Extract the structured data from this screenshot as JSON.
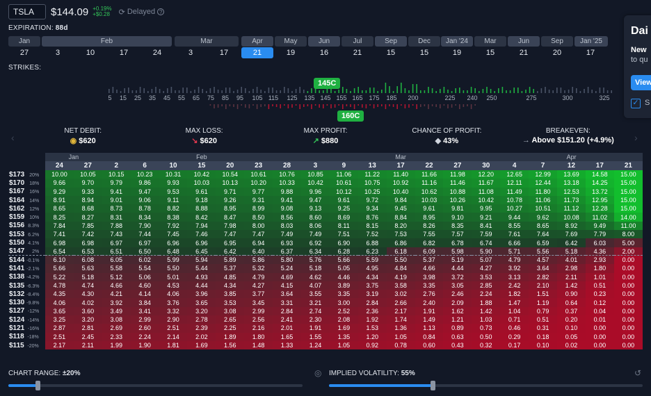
{
  "header": {
    "ticker": "TSLA",
    "price": "$144.09",
    "change_pct": "+0.19%",
    "change_abs": "+$0.28",
    "delayed": "Delayed"
  },
  "expiration": {
    "label": "EXPIRATION:",
    "value": "88d",
    "months": [
      "Jan",
      "Feb",
      "Mar",
      "Apr",
      "May",
      "Jun",
      "Jul",
      "Sep",
      "Dec",
      "Jan '24",
      "Mar",
      "Jun",
      "Sep",
      "Jan '25"
    ],
    "days": [
      "27",
      "3",
      "10",
      "17",
      "24",
      "3",
      "17",
      "21",
      "19",
      "16",
      "21",
      "15",
      "15",
      "19",
      "15",
      "21",
      "20",
      "17"
    ],
    "selected_day": "21"
  },
  "strikes": {
    "label": "STRIKES:",
    "axis": [
      "5",
      "15",
      "25",
      "35",
      "45",
      "55",
      "65",
      "75",
      "85",
      "95",
      "105",
      "115",
      "125",
      "135",
      "145",
      "155",
      "165",
      "175",
      "185",
      "200",
      "225",
      "240",
      "250",
      "275",
      "300",
      "325"
    ],
    "leg_call": "145C",
    "leg_short": "160C"
  },
  "stats": [
    {
      "label": "NET DEBIT:",
      "value": "$620",
      "icon": "coins-icon"
    },
    {
      "label": "MAX LOSS:",
      "value": "$620",
      "icon": "arrow-down-icon"
    },
    {
      "label": "MAX PROFIT:",
      "value": "$880",
      "icon": "arrow-up-icon"
    },
    {
      "label": "CHANCE OF PROFIT:",
      "value": "43%",
      "icon": "dice-icon"
    },
    {
      "label": "BREAKEVEN:",
      "value": "Above $151.20 (+4.9%)",
      "icon": "arrow-right-icon"
    }
  ],
  "grid": {
    "months": [
      {
        "label": "Jan",
        "span": 2
      },
      {
        "label": "Feb",
        "span": 7
      },
      {
        "label": "Mar",
        "span": 7
      },
      {
        "label": "Apr",
        "span": 5
      }
    ],
    "days": [
      "24",
      "27",
      "2",
      "6",
      "10",
      "15",
      "20",
      "23",
      "28",
      "3",
      "9",
      "13",
      "17",
      "22",
      "27",
      "30",
      "4",
      "7",
      "12",
      "17",
      "21"
    ],
    "current_price_row": 10,
    "rows": [
      {
        "price": "$173",
        "pct": "20%",
        "vals": [
          "10.00",
          "10.05",
          "10.15",
          "10.23",
          "10.31",
          "10.42",
          "10.54",
          "10.61",
          "10.76",
          "10.85",
          "11.06",
          "11.22",
          "11.40",
          "11.66",
          "11.98",
          "12.20",
          "12.65",
          "12.99",
          "13.69",
          "14.58",
          "15.00"
        ]
      },
      {
        "price": "$170",
        "pct": "18%",
        "vals": [
          "9.66",
          "9.70",
          "9.79",
          "9.86",
          "9.93",
          "10.03",
          "10.13",
          "10.20",
          "10.33",
          "10.42",
          "10.61",
          "10.75",
          "10.92",
          "11.16",
          "11.46",
          "11.67",
          "12.11",
          "12.44",
          "13.18",
          "14.25",
          "15.00"
        ]
      },
      {
        "price": "$167",
        "pct": "16%",
        "vals": [
          "9.29",
          "9.33",
          "9.41",
          "9.47",
          "9.53",
          "9.61",
          "9.71",
          "9.77",
          "9.88",
          "9.96",
          "10.12",
          "10.25",
          "10.40",
          "10.62",
          "10.88",
          "11.08",
          "11.49",
          "11.80",
          "12.53",
          "13.72",
          "15.00"
        ]
      },
      {
        "price": "$164",
        "pct": "14%",
        "vals": [
          "8.91",
          "8.94",
          "9.01",
          "9.06",
          "9.11",
          "9.18",
          "9.26",
          "9.31",
          "9.41",
          "9.47",
          "9.61",
          "9.72",
          "9.84",
          "10.03",
          "10.26",
          "10.42",
          "10.78",
          "11.06",
          "11.73",
          "12.95",
          "15.00"
        ]
      },
      {
        "price": "$162",
        "pct": "12%",
        "vals": [
          "8.65",
          "8.68",
          "8.73",
          "8.78",
          "8.82",
          "8.88",
          "8.95",
          "8.99",
          "9.08",
          "9.13",
          "9.25",
          "9.34",
          "9.45",
          "9.61",
          "9.81",
          "9.95",
          "10.27",
          "10.51",
          "11.12",
          "12.28",
          "15.00"
        ]
      },
      {
        "price": "$159",
        "pct": "10%",
        "vals": [
          "8.25",
          "8.27",
          "8.31",
          "8.34",
          "8.38",
          "8.42",
          "8.47",
          "8.50",
          "8.56",
          "8.60",
          "8.69",
          "8.76",
          "8.84",
          "8.95",
          "9.10",
          "9.21",
          "9.44",
          "9.62",
          "10.08",
          "11.02",
          "14.00"
        ]
      },
      {
        "price": "$156",
        "pct": "8.3%",
        "vals": [
          "7.84",
          "7.85",
          "7.88",
          "7.90",
          "7.92",
          "7.94",
          "7.98",
          "8.00",
          "8.03",
          "8.06",
          "8.11",
          "8.15",
          "8.20",
          "8.26",
          "8.35",
          "8.41",
          "8.55",
          "8.65",
          "8.92",
          "9.49",
          "11.00"
        ]
      },
      {
        "price": "$153",
        "pct": "6.2%",
        "vals": [
          "7.41",
          "7.42",
          "7.43",
          "7.44",
          "7.45",
          "7.46",
          "7.47",
          "7.47",
          "7.49",
          "7.49",
          "7.51",
          "7.52",
          "7.53",
          "7.55",
          "7.57",
          "7.59",
          "7.61",
          "7.64",
          "7.69",
          "7.79",
          "8.00"
        ]
      },
      {
        "price": "$150",
        "pct": "4.1%",
        "vals": [
          "6.98",
          "6.98",
          "6.97",
          "6.97",
          "6.96",
          "6.96",
          "6.95",
          "6.94",
          "6.93",
          "6.92",
          "6.90",
          "6.88",
          "6.86",
          "6.82",
          "6.78",
          "6.74",
          "6.66",
          "6.59",
          "6.42",
          "6.03",
          "5.00"
        ]
      },
      {
        "price": "$147",
        "pct": "2%",
        "vals": [
          "6.54",
          "6.53",
          "6.51",
          "6.50",
          "6.48",
          "6.45",
          "6.42",
          "6.40",
          "6.37",
          "6.34",
          "6.28",
          "6.23",
          "6.18",
          "6.09",
          "5.98",
          "5.90",
          "5.71",
          "5.56",
          "5.18",
          "4.36",
          "2.00"
        ]
      },
      {
        "price": "$144",
        "pct": "-0.1%",
        "vals": [
          "6.10",
          "6.08",
          "6.05",
          "6.02",
          "5.99",
          "5.94",
          "5.89",
          "5.86",
          "5.80",
          "5.76",
          "5.66",
          "5.59",
          "5.50",
          "5.37",
          "5.19",
          "5.07",
          "4.79",
          "4.57",
          "4.01",
          "2.93",
          "0.00"
        ]
      },
      {
        "price": "$141",
        "pct": "-2.1%",
        "vals": [
          "5.66",
          "5.63",
          "5.58",
          "5.54",
          "5.50",
          "5.44",
          "5.37",
          "5.32",
          "5.24",
          "5.18",
          "5.05",
          "4.95",
          "4.84",
          "4.66",
          "4.44",
          "4.27",
          "3.92",
          "3.64",
          "2.98",
          "1.80",
          "0.00"
        ]
      },
      {
        "price": "$138",
        "pct": "-4.2%",
        "vals": [
          "5.22",
          "5.18",
          "5.12",
          "5.06",
          "5.01",
          "4.93",
          "4.85",
          "4.79",
          "4.69",
          "4.62",
          "4.46",
          "4.34",
          "4.19",
          "3.98",
          "3.72",
          "3.53",
          "3.13",
          "2.82",
          "2.11",
          "1.01",
          "0.00"
        ]
      },
      {
        "price": "$135",
        "pct": "-6.3%",
        "vals": [
          "4.78",
          "4.74",
          "4.66",
          "4.60",
          "4.53",
          "4.44",
          "4.34",
          "4.27",
          "4.15",
          "4.07",
          "3.89",
          "3.75",
          "3.58",
          "3.35",
          "3.05",
          "2.85",
          "2.42",
          "2.10",
          "1.42",
          "0.51",
          "0.00"
        ]
      },
      {
        "price": "$132",
        "pct": "-8.4%",
        "vals": [
          "4.35",
          "4.30",
          "4.21",
          "4.14",
          "4.06",
          "3.96",
          "3.85",
          "3.77",
          "3.64",
          "3.55",
          "3.35",
          "3.19",
          "3.02",
          "2.76",
          "2.46",
          "2.24",
          "1.82",
          "1.51",
          "0.90",
          "0.23",
          "0.00"
        ]
      },
      {
        "price": "$130",
        "pct": "-9.8%",
        "vals": [
          "4.06",
          "4.02",
          "3.92",
          "3.84",
          "3.76",
          "3.65",
          "3.53",
          "3.45",
          "3.31",
          "3.21",
          "3.00",
          "2.84",
          "2.66",
          "2.40",
          "2.09",
          "1.88",
          "1.47",
          "1.19",
          "0.64",
          "0.12",
          "0.00"
        ]
      },
      {
        "price": "$127",
        "pct": "-12%",
        "vals": [
          "3.65",
          "3.60",
          "3.49",
          "3.41",
          "3.32",
          "3.20",
          "3.08",
          "2.99",
          "2.84",
          "2.74",
          "2.52",
          "2.36",
          "2.17",
          "1.91",
          "1.62",
          "1.42",
          "1.04",
          "0.79",
          "0.37",
          "0.04",
          "0.00"
        ]
      },
      {
        "price": "$124",
        "pct": "-14%",
        "vals": [
          "3.25",
          "3.20",
          "3.08",
          "2.99",
          "2.90",
          "2.78",
          "2.65",
          "2.56",
          "2.41",
          "2.30",
          "2.08",
          "1.92",
          "1.74",
          "1.49",
          "1.21",
          "1.03",
          "0.71",
          "0.51",
          "0.20",
          "0.01",
          "0.00"
        ]
      },
      {
        "price": "$121",
        "pct": "-16%",
        "vals": [
          "2.87",
          "2.81",
          "2.69",
          "2.60",
          "2.51",
          "2.39",
          "2.25",
          "2.16",
          "2.01",
          "1.91",
          "1.69",
          "1.53",
          "1.36",
          "1.13",
          "0.89",
          "0.73",
          "0.46",
          "0.31",
          "0.10",
          "0.00",
          "0.00"
        ]
      },
      {
        "price": "$118",
        "pct": "-18%",
        "vals": [
          "2.51",
          "2.45",
          "2.33",
          "2.24",
          "2.14",
          "2.02",
          "1.89",
          "1.80",
          "1.65",
          "1.55",
          "1.35",
          "1.20",
          "1.05",
          "0.84",
          "0.63",
          "0.50",
          "0.29",
          "0.18",
          "0.05",
          "0.00",
          "0.00"
        ]
      },
      {
        "price": "$115",
        "pct": "-20%",
        "vals": [
          "2.17",
          "2.11",
          "1.99",
          "1.90",
          "1.81",
          "1.69",
          "1.56",
          "1.48",
          "1.33",
          "1.24",
          "1.05",
          "0.92",
          "0.78",
          "0.60",
          "0.43",
          "0.32",
          "0.17",
          "0.10",
          "0.02",
          "0.00",
          "0.00"
        ]
      }
    ]
  },
  "footer": {
    "chart_range_label": "CHART RANGE:",
    "chart_range_value": "±20%",
    "iv_label": "IMPLIED VOLATILITY:",
    "iv_value": "55%",
    "chart_range_fraction": 0.1,
    "iv_fraction": 0.33
  },
  "popup": {
    "title": "Dai",
    "line1": "New",
    "line2": "to qu",
    "button": "View",
    "check_label": "S"
  },
  "colors": {
    "profit": "#1fb041",
    "loss": "#b01530",
    "accent": "#2a8cf0"
  }
}
